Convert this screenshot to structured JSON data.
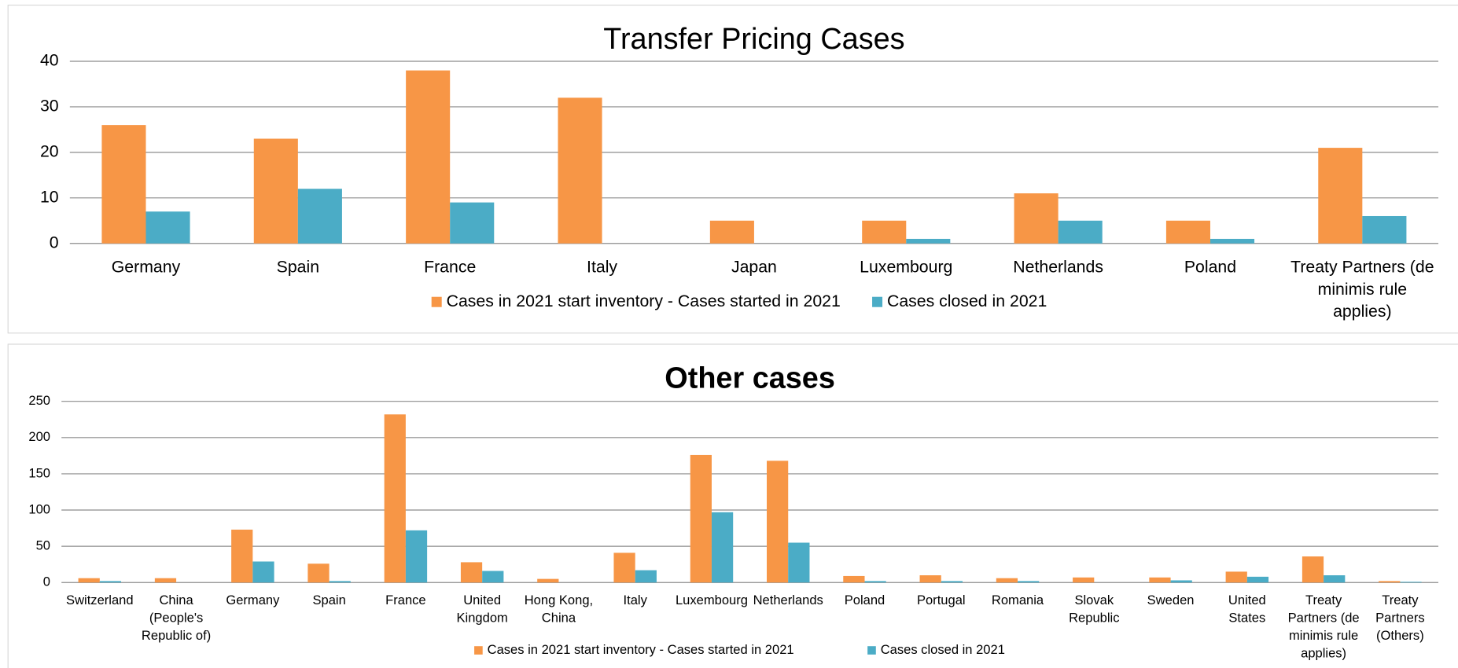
{
  "chart_data": [
    {
      "type": "bar",
      "title": "Transfer Pricing Cases",
      "categories": [
        "Germany",
        "Spain",
        "France",
        "Italy",
        "Japan",
        "Luxembourg",
        "Netherlands",
        "Poland",
        "Treaty Partners (de minimis rule applies)"
      ],
      "series": [
        {
          "name": "Cases in 2021 start inventory - Cases started in 2021",
          "color": "#f79646",
          "values": [
            26,
            23,
            38,
            32,
            5,
            5,
            11,
            5,
            21
          ]
        },
        {
          "name": "Cases closed in 2021",
          "color": "#4bacc6",
          "values": [
            7,
            12,
            9,
            0,
            0,
            1,
            5,
            1,
            6
          ]
        }
      ],
      "ylim": [
        0,
        40
      ],
      "yticks": [
        0,
        10,
        20,
        30,
        40
      ],
      "grid": true,
      "legend": "bottom"
    },
    {
      "type": "bar",
      "title": "Other cases",
      "categories": [
        "Switzerland",
        "China (People's Republic of)",
        "Germany",
        "Spain",
        "France",
        "United Kingdom",
        "Hong Kong, China",
        "Italy",
        "Luxembourg",
        "Netherlands",
        "Poland",
        "Portugal",
        "Romania",
        "Slovak Republic",
        "Sweden",
        "United States",
        "Treaty Partners (de minimis rule applies)",
        "Treaty Partners (Others)"
      ],
      "series": [
        {
          "name": "Cases in 2021 start inventory - Cases started in 2021",
          "color": "#f79646",
          "values": [
            6,
            6,
            73,
            26,
            232,
            28,
            5,
            41,
            176,
            168,
            9,
            10,
            6,
            7,
            7,
            15,
            36,
            2
          ]
        },
        {
          "name": "Cases closed in 2021",
          "color": "#4bacc6",
          "values": [
            2,
            0,
            29,
            2,
            72,
            16,
            0,
            17,
            97,
            55,
            2,
            2,
            2,
            0,
            3,
            8,
            10,
            1
          ]
        }
      ],
      "ylim": [
        0,
        250
      ],
      "yticks": [
        0,
        50,
        100,
        150,
        200,
        250
      ],
      "grid": true,
      "legend": "bottom"
    }
  ]
}
